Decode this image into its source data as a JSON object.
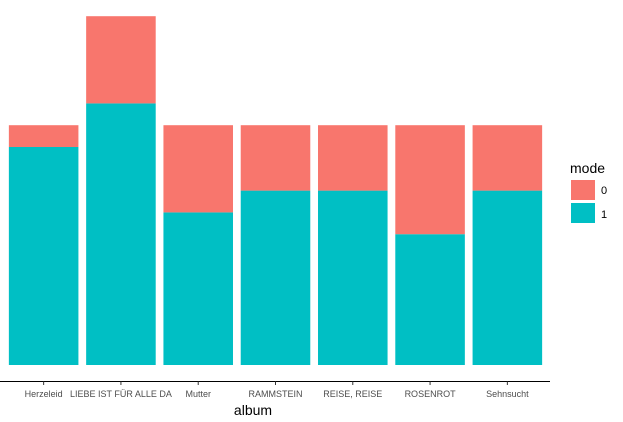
{
  "chart_data": {
    "type": "bar",
    "stacked": true,
    "xlabel": "album",
    "ylabel": "",
    "categories": [
      "Herzeleid",
      "LIEBE IST FÜR ALLE DA",
      "Mutter",
      "RAMMSTEIN",
      "REISE, REISE",
      "ROSENROT",
      "Sehnsucht"
    ],
    "series": [
      {
        "name": "1",
        "color": "#00BFC4",
        "values": [
          10,
          12,
          7,
          8,
          8,
          6,
          8
        ]
      },
      {
        "name": "0",
        "color": "#F8766D",
        "values": [
          1,
          4,
          4,
          3,
          3,
          5,
          3
        ]
      }
    ],
    "ylim": [
      0,
      16.5
    ],
    "grid": false,
    "legend": {
      "title": "mode",
      "position": "right",
      "items": [
        "0",
        "1"
      ]
    }
  }
}
